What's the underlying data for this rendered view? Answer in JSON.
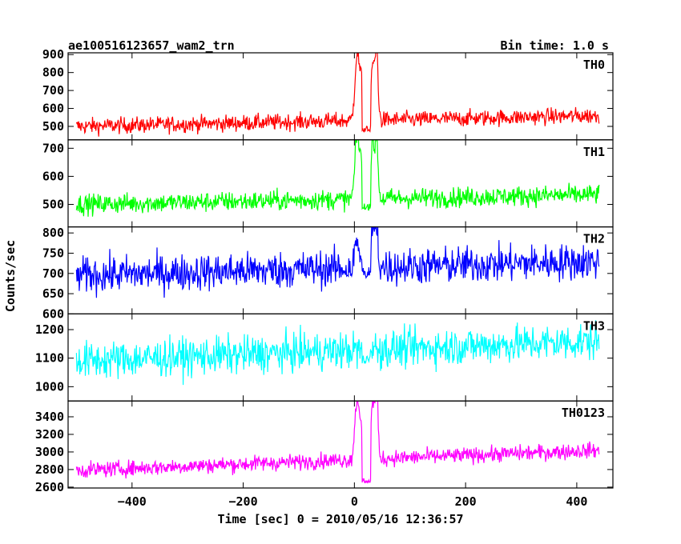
{
  "chart_data": {
    "type": "line",
    "title": "ae100516123657_wam2_trn",
    "bin_time": "Bin time: 1.0 s",
    "xlabel": "Time [sec] 0 = 2010/05/16 12:36:57",
    "ylabel": "Counts/sec",
    "xlim": [
      -515,
      465
    ],
    "x_ticks": [
      -400,
      -200,
      0,
      200,
      400
    ],
    "x_tick_labels": [
      "−400",
      "−200",
      "0",
      "200",
      "400"
    ],
    "x_range": [
      -500,
      440
    ],
    "panels": [
      {
        "name": "TH0",
        "color": "#ff0000",
        "ylim": [
          425,
          910
        ],
        "y_ticks": [
          500,
          600,
          700,
          800,
          900
        ],
        "y_tick_labels": [
          "500",
          "600",
          "700",
          "800",
          "900"
        ],
        "baseline_start": 500,
        "baseline_end": 560,
        "noise": 38,
        "peaks": [
          [
            5,
            870,
            4
          ],
          [
            13,
            700,
            3
          ],
          [
            33,
            820,
            3
          ],
          [
            40,
            905,
            2.5
          ]
        ],
        "dip": [
          20,
          470
        ]
      },
      {
        "name": "TH1",
        "color": "#00ff00",
        "ylim": [
          420,
          730
        ],
        "y_ticks": [
          500,
          600,
          700
        ],
        "y_tick_labels": [
          "500",
          "600",
          "700"
        ],
        "baseline_start": 500,
        "baseline_end": 535,
        "noise": 30,
        "peaks": [
          [
            5,
            720,
            4
          ],
          [
            13,
            620,
            3
          ],
          [
            33,
            700,
            3
          ],
          [
            40,
            715,
            2.5
          ]
        ],
        "dip": [
          20,
          480
        ]
      },
      {
        "name": "TH2",
        "color": "#0000ff",
        "ylim": [
          600,
          815
        ],
        "y_ticks": [
          600,
          650,
          700,
          750,
          800
        ],
        "y_tick_labels": [
          "600",
          "650",
          "700",
          "750",
          "800"
        ],
        "baseline_start": 695,
        "baseline_end": 730,
        "noise": 38,
        "peaks": [
          [
            5,
            760,
            4
          ],
          [
            33,
            790,
            3
          ],
          [
            40,
            800,
            2.5
          ]
        ],
        "dip": [
          20,
          690
        ]
      },
      {
        "name": "TH3",
        "color": "#00ffff",
        "ylim": [
          950,
          1255
        ],
        "y_ticks": [
          1000,
          1100,
          1200
        ],
        "y_tick_labels": [
          "1000",
          "1100",
          "1200"
        ],
        "baseline_start": 1090,
        "baseline_end": 1160,
        "noise": 55,
        "peaks": [],
        "dip": [
          20,
          1080
        ]
      },
      {
        "name": "TH0123",
        "color": "#ff00ff",
        "ylim": [
          2590,
          3580
        ],
        "y_ticks": [
          2600,
          2800,
          3000,
          3200,
          3400
        ],
        "y_tick_labels": [
          "2600",
          "2800",
          "3000",
          "3200",
          "3400"
        ],
        "baseline_start": 2790,
        "baseline_end": 3020,
        "noise": 75,
        "peaks": [
          [
            5,
            3480,
            4
          ],
          [
            13,
            3100,
            3
          ],
          [
            33,
            3450,
            3
          ],
          [
            40,
            3540,
            2.5
          ]
        ],
        "dip": [
          20,
          2650
        ]
      }
    ]
  }
}
